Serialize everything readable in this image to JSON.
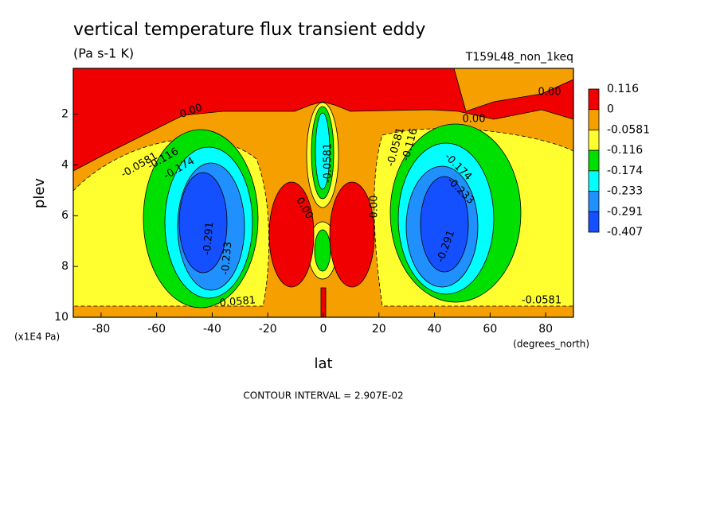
{
  "chart_data": {
    "type": "contour",
    "title": "vertical temperature flux transient eddy",
    "subtitle": "(Pa s-1 K)",
    "run_label": "T159L48_non_1keq",
    "x_label": "lat",
    "x_unit": "(degrees_north)",
    "y_label": "plev",
    "y_unit": "(x1E4 Pa)",
    "footer": "CONTOUR INTERVAL = 2.907E-02",
    "xlim": [
      -90,
      90
    ],
    "xticks": [
      -80,
      -60,
      -40,
      -20,
      0,
      20,
      40,
      60,
      80
    ],
    "ylim": [
      10,
      0.2
    ],
    "yticks": [
      2,
      4,
      6,
      8,
      10
    ],
    "levels": [
      0.116,
      0,
      -0.0581,
      -0.116,
      -0.174,
      -0.233,
      -0.291,
      -0.407
    ],
    "colors": [
      "#f00000",
      "#f5a000",
      "#ffff30",
      "#00e000",
      "#00ffff",
      "#2090ff",
      "#1450ff"
    ],
    "contour_labels": [
      "0.00",
      "-0.0581",
      "-0.116",
      "-0.174",
      "-0.233",
      "-0.291",
      "0.00",
      "0.00",
      "0.00",
      "-0.0581",
      "-0.116",
      "-0.174",
      "-0.233",
      "-0.291",
      "-0.0581",
      "0.00",
      "-0.0581",
      "-0.0581"
    ]
  }
}
